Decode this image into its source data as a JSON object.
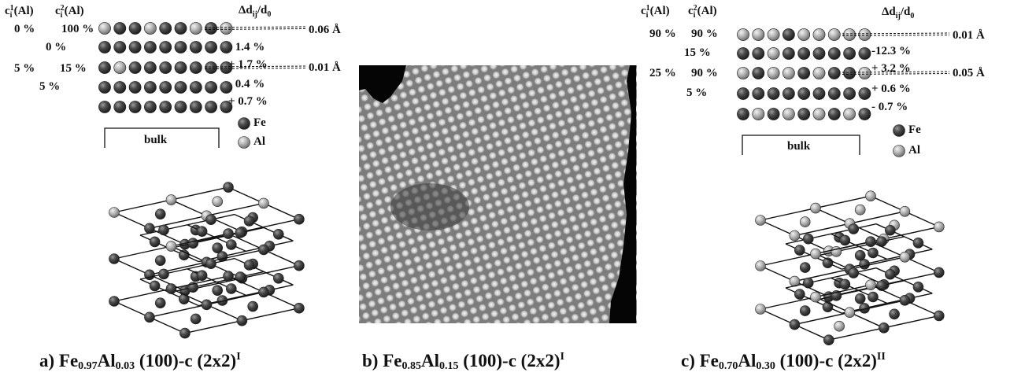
{
  "panels": {
    "a": {
      "header_c1": "c",
      "header_c1_sup": "1",
      "header_c1_sub": "i",
      "header_c1_tail": "(Al)",
      "header_c2": "c",
      "header_c2_sup": "2",
      "header_c2_sub": "i",
      "header_c2_tail": "(Al)",
      "header_dd": "Δd",
      "header_dd_sub": "ij",
      "header_dd_tail": "/d",
      "header_dd_sub0": "0",
      "layers": [
        {
          "c1": "0 %",
          "c2": "100 %"
        },
        {
          "c2": "0 %"
        },
        {
          "c1": "5 %",
          "c2": "15 %"
        },
        {
          "c2": "5 %"
        }
      ],
      "relax": [
        "- 1.4 %",
        "+ 1.7 %",
        "- 0.4 %",
        "+ 0.7 %"
      ],
      "rumple": [
        "0.06 Å",
        "0.01 Å"
      ],
      "legend_fe": "Fe",
      "legend_al": "Al",
      "bulk": "bulk",
      "caption": {
        "pre": "a) Fe",
        "s1": "0.97",
        "mid": "Al",
        "s2": "0.03",
        "post": " (100)-c (2x2)",
        "sup": "I"
      }
    },
    "b": {
      "caption": {
        "pre": "b) Fe",
        "s1": "0.85",
        "mid": "Al",
        "s2": "0.15",
        "post": " (100)-c (2x2)",
        "sup": "I"
      }
    },
    "c": {
      "header_c1": "c",
      "header_c1_sup": "1",
      "header_c1_sub": "i",
      "header_c1_tail": "(Al)",
      "header_c2": "c",
      "header_c2_sup": "2",
      "header_c2_sub": "i",
      "header_c2_tail": "(Al)",
      "header_dd": "Δd",
      "header_dd_sub": "ij",
      "header_dd_tail": "/d",
      "header_dd_sub0": "0",
      "layers": [
        {
          "c1": "90 %",
          "c2": "90 %"
        },
        {
          "c2": "15 %"
        },
        {
          "c1": "25 %",
          "c2": "90 %"
        },
        {
          "c2": "5 %"
        }
      ],
      "relax": [
        "-12.3 %",
        "+ 3.2 %",
        "+ 0.6 %",
        "-  0.7 %"
      ],
      "rumple": [
        "0.01 Å",
        "0.05 Å"
      ],
      "legend_fe": "Fe",
      "legend_al": "Al",
      "bulk": "bulk",
      "caption": {
        "pre": "c) Fe",
        "s1": "0.70",
        "mid": "Al",
        "s2": "0.30",
        "post": " (100)-c (2x2)",
        "sup": "II"
      }
    }
  },
  "colors": {
    "fe": "#4a4a4a",
    "al": "#b4b4b4"
  }
}
